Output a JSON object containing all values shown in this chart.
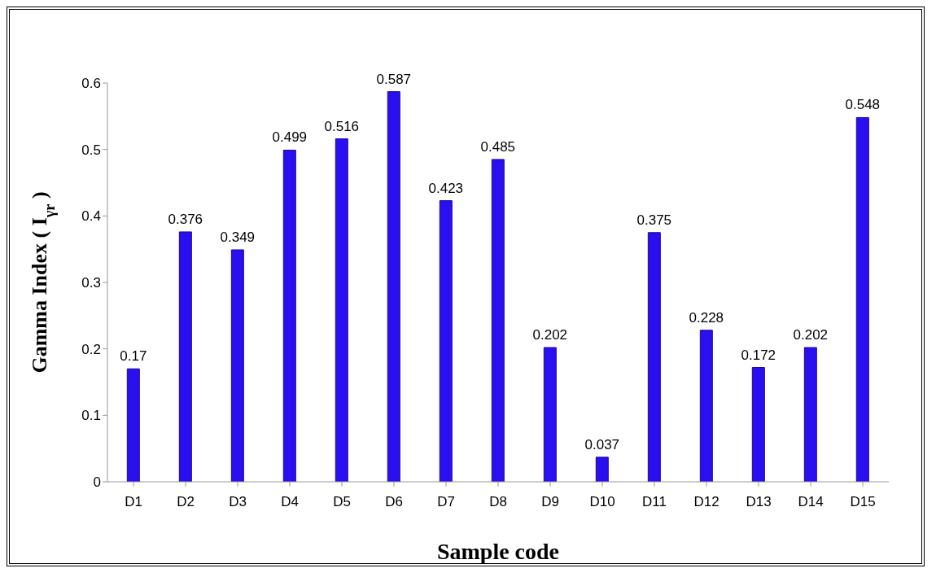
{
  "chart_data": {
    "type": "bar",
    "xlabel": "Sample code",
    "ylabel": "Gamma Index ( I$_{γr}$ )",
    "categories": [
      "D1",
      "D2",
      "D3",
      "D4",
      "D5",
      "D6",
      "D7",
      "D8",
      "D9",
      "D10",
      "D11",
      "D12",
      "D13",
      "D14",
      "D15"
    ],
    "values": [
      0.17,
      0.376,
      0.349,
      0.499,
      0.516,
      0.587,
      0.423,
      0.485,
      0.202,
      0.037,
      0.375,
      0.228,
      0.172,
      0.202,
      0.548
    ],
    "color": "#2a0ff0",
    "ylim": [
      0,
      0.6
    ],
    "yticks": [
      0,
      0.1,
      0.2,
      0.3,
      0.4,
      0.5,
      0.6
    ],
    "grid": false,
    "data_labels": true
  }
}
